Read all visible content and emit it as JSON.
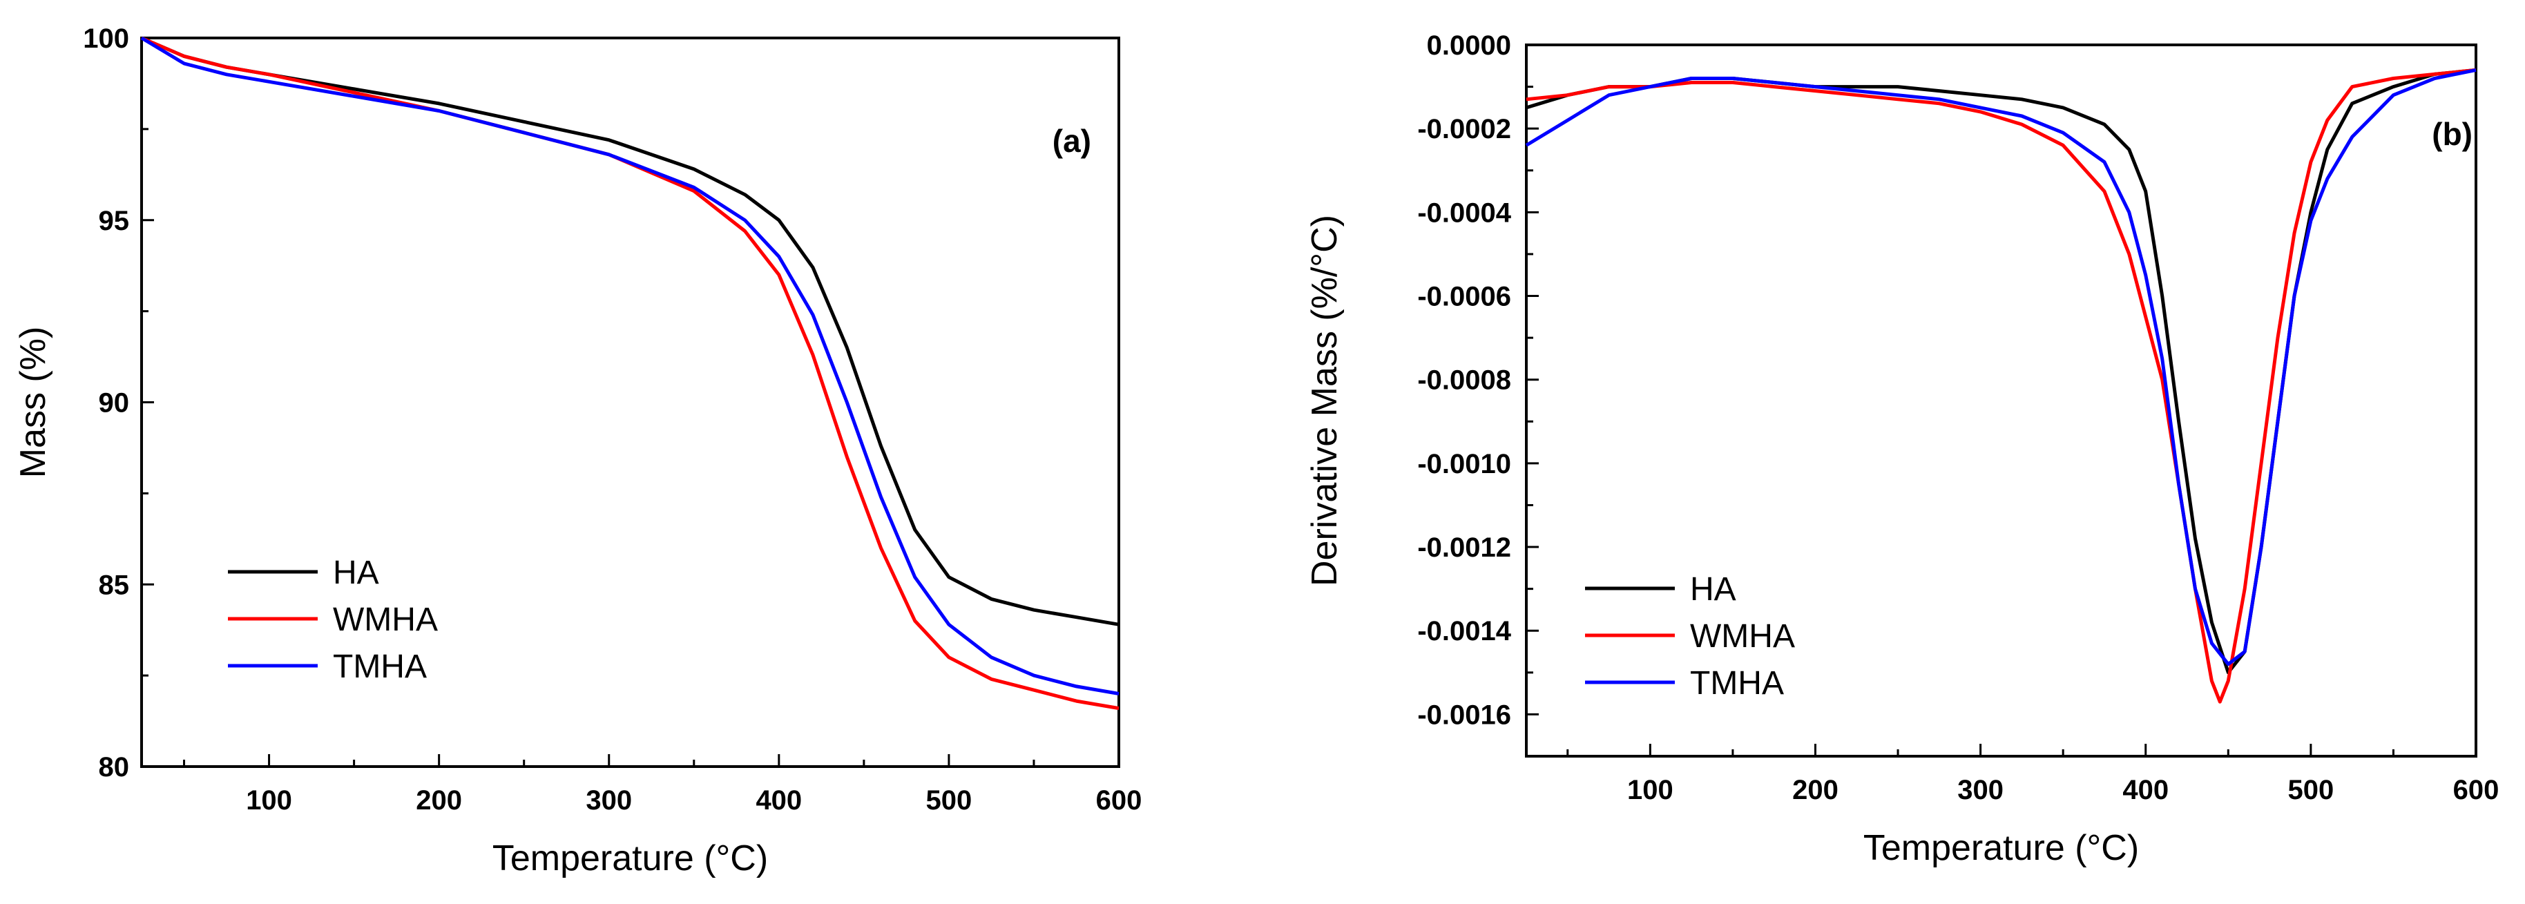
{
  "chart_data": [
    {
      "type": "line",
      "panel_label": "(a)",
      "xlabel": "Temperature (°C)",
      "ylabel": "Mass (%)",
      "xlim": [
        25,
        600
      ],
      "ylim": [
        80,
        100
      ],
      "xticks": [
        100,
        200,
        300,
        400,
        500,
        600
      ],
      "xtick_labels": [
        "100",
        "200",
        "300",
        "400",
        "500",
        "600"
      ],
      "yticks": [
        80,
        85,
        90,
        95,
        100
      ],
      "ytick_labels": [
        "80",
        "85",
        "90",
        "95",
        "100"
      ],
      "legend_position": "bottom-left",
      "series": [
        {
          "name": "HA",
          "color": "#000000",
          "x": [
            25,
            50,
            75,
            100,
            150,
            200,
            250,
            300,
            350,
            380,
            400,
            420,
            440,
            460,
            480,
            500,
            525,
            550,
            575,
            600
          ],
          "y": [
            100,
            99.5,
            99.2,
            99.0,
            98.6,
            98.2,
            97.7,
            97.2,
            96.4,
            95.7,
            95.0,
            93.7,
            91.5,
            88.8,
            86.5,
            85.2,
            84.6,
            84.3,
            84.1,
            83.9
          ]
        },
        {
          "name": "WMHA",
          "color": "#ff0000",
          "x": [
            25,
            50,
            75,
            100,
            150,
            200,
            250,
            300,
            350,
            380,
            400,
            420,
            440,
            460,
            480,
            500,
            525,
            550,
            575,
            600
          ],
          "y": [
            100,
            99.5,
            99.2,
            99.0,
            98.5,
            98.0,
            97.4,
            96.8,
            95.8,
            94.7,
            93.5,
            91.3,
            88.5,
            86.0,
            84.0,
            83.0,
            82.4,
            82.1,
            81.8,
            81.6
          ]
        },
        {
          "name": "TMHA",
          "color": "#0000ff",
          "x": [
            25,
            50,
            75,
            100,
            150,
            200,
            250,
            300,
            350,
            380,
            400,
            420,
            440,
            460,
            480,
            500,
            525,
            550,
            575,
            600
          ],
          "y": [
            100,
            99.3,
            99.0,
            98.8,
            98.4,
            98.0,
            97.4,
            96.8,
            95.9,
            95.0,
            94.0,
            92.4,
            90.0,
            87.4,
            85.2,
            83.9,
            83.0,
            82.5,
            82.2,
            82.0
          ]
        }
      ]
    },
    {
      "type": "line",
      "panel_label": "(b)",
      "xlabel": "Temperature (°C)",
      "ylabel": "Derivative Mass (%/°C)",
      "xlim": [
        25,
        600
      ],
      "ylim": [
        -0.0017,
        0.0
      ],
      "xticks": [
        100,
        200,
        300,
        400,
        500,
        600
      ],
      "xtick_labels": [
        "100",
        "200",
        "300",
        "400",
        "500",
        "600"
      ],
      "yticks": [
        0.0,
        -0.0002,
        -0.0004,
        -0.0006,
        -0.0008,
        -0.001,
        -0.0012,
        -0.0014,
        -0.0016
      ],
      "ytick_labels": [
        "0.0000",
        "-0.0002",
        "-0.0004",
        "-0.0006",
        "-0.0008",
        "-0.0010",
        "-0.0012",
        "-0.0014",
        "-0.0016"
      ],
      "legend_position": "bottom-left",
      "series": [
        {
          "name": "HA",
          "color": "#000000",
          "x": [
            25,
            50,
            75,
            100,
            125,
            150,
            175,
            200,
            225,
            250,
            275,
            300,
            325,
            350,
            375,
            390,
            400,
            410,
            420,
            430,
            440,
            450,
            460,
            470,
            480,
            490,
            500,
            510,
            525,
            550,
            575,
            600
          ],
          "y": [
            -0.00015,
            -0.00012,
            -0.0001,
            -0.0001,
            -8e-05,
            -8e-05,
            -9e-05,
            -0.0001,
            -0.0001,
            -0.0001,
            -0.00011,
            -0.00012,
            -0.00013,
            -0.00015,
            -0.00019,
            -0.00025,
            -0.00035,
            -0.0006,
            -0.0009,
            -0.00118,
            -0.00138,
            -0.0015,
            -0.00145,
            -0.0012,
            -0.0009,
            -0.0006,
            -0.0004,
            -0.00025,
            -0.00014,
            -0.0001,
            -7e-05,
            -6e-05
          ]
        },
        {
          "name": "WMHA",
          "color": "#ff0000",
          "x": [
            25,
            50,
            75,
            100,
            125,
            150,
            175,
            200,
            225,
            250,
            275,
            300,
            325,
            350,
            375,
            390,
            400,
            410,
            420,
            430,
            440,
            445,
            450,
            460,
            470,
            480,
            490,
            500,
            510,
            525,
            550,
            575,
            600
          ],
          "y": [
            -0.00013,
            -0.00012,
            -0.0001,
            -0.0001,
            -9e-05,
            -9e-05,
            -0.0001,
            -0.00011,
            -0.00012,
            -0.00013,
            -0.00014,
            -0.00016,
            -0.00019,
            -0.00024,
            -0.00035,
            -0.0005,
            -0.00065,
            -0.0008,
            -0.00105,
            -0.0013,
            -0.00152,
            -0.00157,
            -0.00152,
            -0.0013,
            -0.001,
            -0.0007,
            -0.00045,
            -0.00028,
            -0.00018,
            -0.0001,
            -8e-05,
            -7e-05,
            -6e-05
          ]
        },
        {
          "name": "TMHA",
          "color": "#0000ff",
          "x": [
            25,
            50,
            75,
            100,
            125,
            150,
            175,
            200,
            225,
            250,
            275,
            300,
            325,
            350,
            375,
            390,
            400,
            410,
            420,
            430,
            440,
            450,
            460,
            470,
            480,
            490,
            500,
            510,
            525,
            550,
            575,
            600
          ],
          "y": [
            -0.00024,
            -0.00018,
            -0.00012,
            -0.0001,
            -8e-05,
            -8e-05,
            -9e-05,
            -0.0001,
            -0.00011,
            -0.00012,
            -0.00013,
            -0.00015,
            -0.00017,
            -0.00021,
            -0.00028,
            -0.0004,
            -0.00055,
            -0.00075,
            -0.00105,
            -0.0013,
            -0.00143,
            -0.00148,
            -0.00145,
            -0.0012,
            -0.0009,
            -0.0006,
            -0.00042,
            -0.00032,
            -0.00022,
            -0.00012,
            -8e-05,
            -6e-05
          ]
        }
      ]
    }
  ]
}
